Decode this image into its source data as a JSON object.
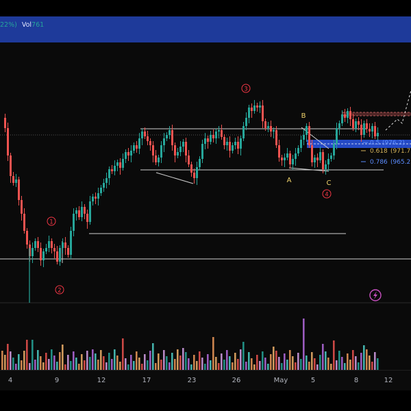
{
  "legend": {
    "pct_fragment": "22%)",
    "vol_label": "Vol",
    "vol_value": "761"
  },
  "wave_labels": {
    "w1": "1",
    "w2": "2",
    "w3": "3",
    "w4": "4",
    "a": "A",
    "b": "B",
    "c": "C"
  },
  "fib_levels": [
    {
      "ratio": "0.5",
      "price": "(976.2)",
      "color": "#5b8cff"
    },
    {
      "ratio": "0.618",
      "price": "(971.7)",
      "color": "#d4b25a"
    },
    {
      "ratio": "0.786",
      "price": "(965.2)",
      "color": "#5b8cff"
    }
  ],
  "x_axis": {
    "labels": [
      {
        "text": "4",
        "x": 15
      },
      {
        "text": "9",
        "x": 83
      },
      {
        "text": "12",
        "x": 148
      },
      {
        "text": "17",
        "x": 214
      },
      {
        "text": "23",
        "x": 280
      },
      {
        "text": "26",
        "x": 345
      },
      {
        "text": "May",
        "x": 410
      },
      {
        "text": "5",
        "x": 457
      },
      {
        "text": "8",
        "x": 520
      },
      {
        "text": "12",
        "x": 567
      }
    ]
  },
  "colors": {
    "up": "#26a69a",
    "down": "#ef5350",
    "wave": "#f23645",
    "abc": "#f0d36b"
  },
  "icons": {
    "alert": "lightning-alert-icon"
  }
}
